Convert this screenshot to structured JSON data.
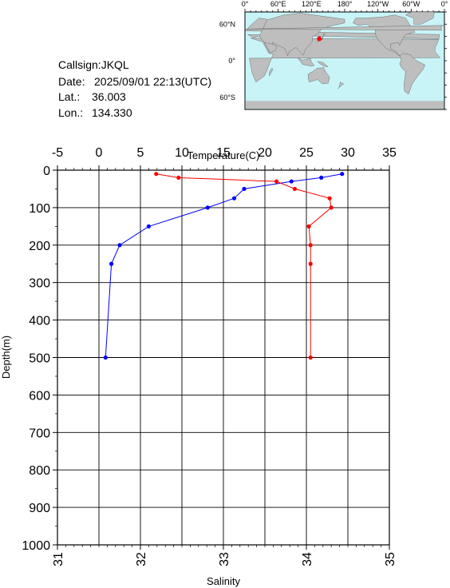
{
  "station": {
    "callsign": "Callsign:JKQL",
    "date_label": "Date:",
    "date_value": "2025/09/01 22:13(UTC)",
    "lat_label": "Lat.:",
    "lat_value": "36.003",
    "lon_label": "Lon.:",
    "lon_value": "134.330"
  },
  "map": {
    "top_labels": [
      "0°",
      "60°E",
      "120°E",
      "180°",
      "120°W",
      "60°W",
      "0°"
    ],
    "lat_labels": [
      "60°N",
      "0°",
      "60°S"
    ],
    "ocean_color": "#c8f4f8",
    "land_color": "#bebebe",
    "marker_color": "#ff0000",
    "marker_lat": 36.003,
    "marker_lon": 134.33
  },
  "chart_data": {
    "type": "line",
    "xlabel_top": "Temperature(C)",
    "xlabel_bottom": "Salinity",
    "ylabel": "Depth(m)",
    "temperature_ticks": [
      "-5",
      "0",
      "5",
      "10",
      "15",
      "20",
      "25",
      "30",
      "35"
    ],
    "salinity_ticks": [
      "31",
      "32",
      "33",
      "34",
      "35"
    ],
    "depth_ticks": [
      "0",
      "100",
      "200",
      "300",
      "400",
      "500",
      "600",
      "700",
      "800",
      "900",
      "1000"
    ],
    "temperature_range": [
      -5,
      35
    ],
    "salinity_range": [
      31,
      35
    ],
    "depth_range": [
      0,
      1000
    ],
    "grid": true,
    "series": [
      {
        "quantity": "temperature",
        "color": "#0000ff",
        "depth": [
          10,
          20,
          30,
          50,
          75,
          100,
          150,
          200,
          250,
          500
        ],
        "values": [
          29.3,
          26.8,
          23.2,
          17.5,
          16.3,
          13.1,
          6.0,
          2.5,
          1.5,
          0.8
        ]
      },
      {
        "quantity": "salinity",
        "color": "#ff0000",
        "depth": [
          10,
          20,
          30,
          50,
          75,
          100,
          150,
          200,
          250,
          500
        ],
        "values": [
          32.19,
          32.46,
          33.64,
          33.86,
          34.28,
          34.3,
          34.03,
          34.05,
          34.05,
          34.05
        ]
      }
    ]
  }
}
